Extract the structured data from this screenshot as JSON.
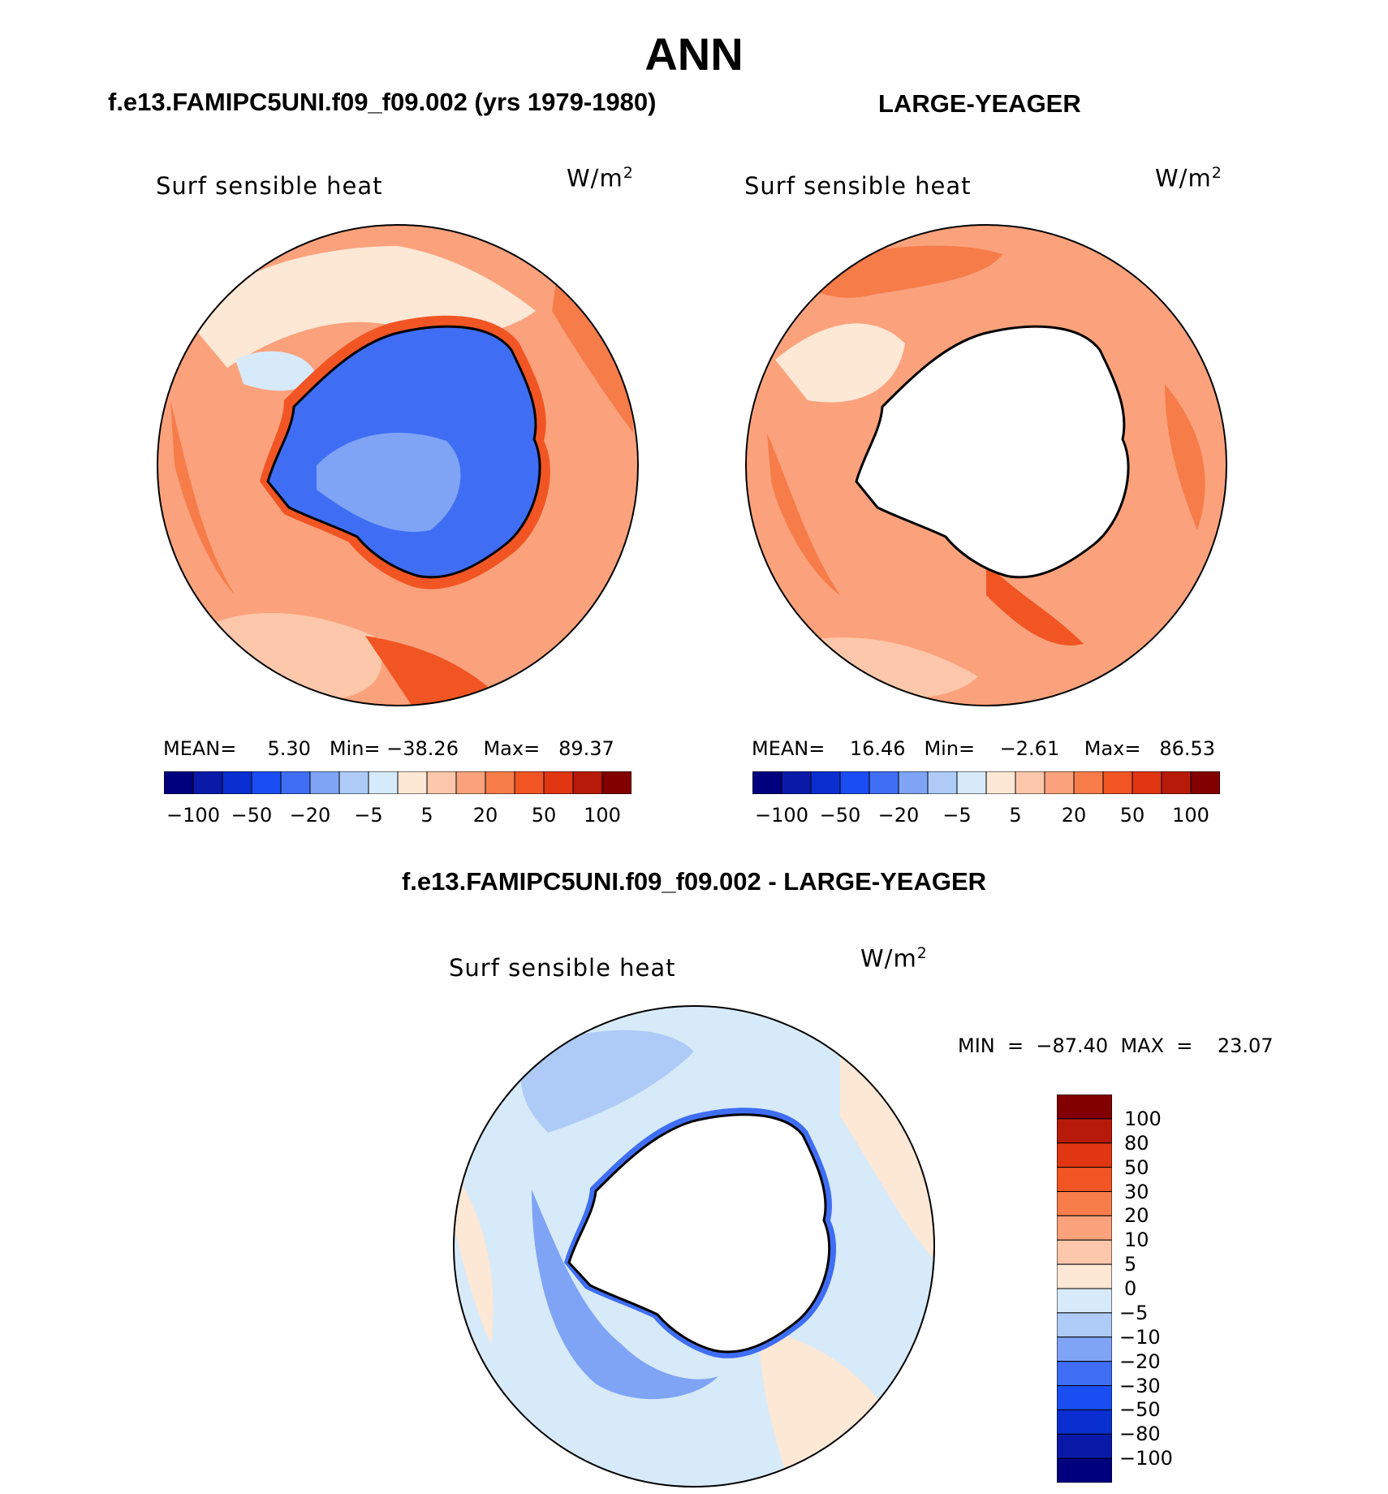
{
  "title": "ANN",
  "panels": [
    {
      "id": "model",
      "header": "f.e13.FAMIPC5UNI.f09_f09.002 (yrs 1979-1980)",
      "variable": "Surf sensible heat",
      "units": "W/m",
      "units_exp": "2",
      "stats_text": "MEAN=     5.30   Min= −38.26    Max=   89.37"
    },
    {
      "id": "obs",
      "header": "LARGE-YEAGER",
      "variable": "Surf sensible heat",
      "units": "W/m",
      "units_exp": "2",
      "stats_text": "MEAN=    16.46   Min=    −2.61    Max=   86.53"
    },
    {
      "id": "diff",
      "header": "f.e13.FAMIPC5UNI.f09_f09.002 - LARGE-YEAGER",
      "variable": "Surf sensible heat",
      "units": "W/m",
      "units_exp": "2",
      "stats_text": "MIN  =  −87.40  MAX  =    23.07"
    }
  ],
  "colorbar_main": {
    "colors": [
      "#00007f",
      "#0a1aa8",
      "#0a2fd0",
      "#1a4ef2",
      "#3f6ef5",
      "#7fa4f6",
      "#aecbf8",
      "#d7eaf9",
      "#fde7d5",
      "#fcc7aa",
      "#fba27c",
      "#f67c4a",
      "#f25524",
      "#e03612",
      "#b81a0a",
      "#820000"
    ],
    "tick_labels": [
      "−100",
      "−50",
      "−20",
      "−5",
      "5",
      "20",
      "50",
      "100"
    ]
  },
  "colorbar_diff": {
    "colors": [
      "#820000",
      "#b81a0a",
      "#e03612",
      "#f25524",
      "#f67c4a",
      "#fba27c",
      "#fcc7aa",
      "#fde7d5",
      "#d7eaf9",
      "#aecbf8",
      "#7fa4f6",
      "#3f6ef5",
      "#1a4ef2",
      "#0a2fd0",
      "#0a1aa8",
      "#00007f"
    ],
    "tick_labels": [
      "100",
      "80",
      "50",
      "30",
      "20",
      "10",
      "5",
      "0",
      "−5",
      "−10",
      "−20",
      "−30",
      "−50",
      "−80",
      "−100"
    ]
  },
  "palette": {
    "ocean_base": "#fba27c",
    "ocean_light": "#fcc7aa",
    "ocean_dark": "#f67c4a",
    "ice_blue": "#3f6ef5",
    "ice_light": "#7fa4f6",
    "diff_base": "#d7eaf9",
    "diff_warm": "#fde7d5",
    "diff_cool": "#aecbf8",
    "coast": "#000000",
    "land_mask": "#ffffff"
  }
}
